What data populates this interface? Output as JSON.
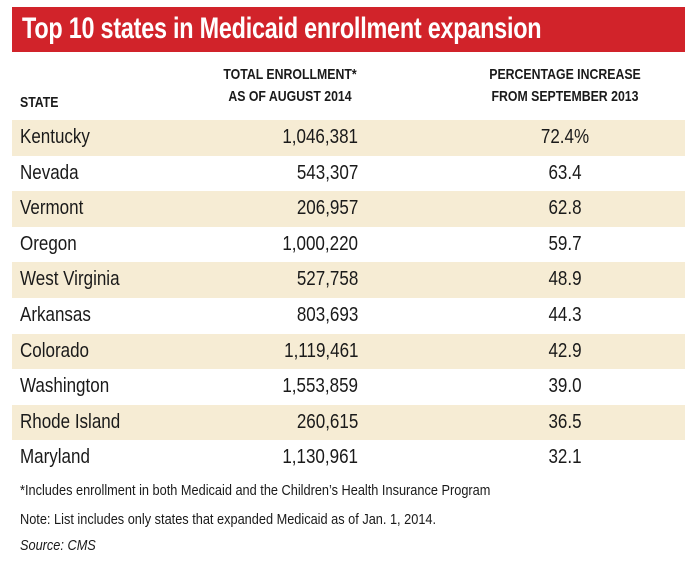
{
  "title": "Top 10 states in Medicaid enrollment expansion",
  "colors": {
    "title_bar": "#d1232a",
    "row_shade": "#f6ecd4"
  },
  "chart_data": {
    "type": "table",
    "title": "Top 10 states in Medicaid enrollment expansion",
    "columns": [
      "STATE",
      "TOTAL ENROLLMENT* AS OF AUGUST 2014",
      "PERCENTAGE INCREASE FROM SEPTEMBER 2013"
    ],
    "header": {
      "state": "STATE",
      "enroll_line1": "TOTAL ENROLLMENT*",
      "enroll_line2": "AS OF AUGUST 2014",
      "pct_line1": "PERCENTAGE INCREASE",
      "pct_line2": "FROM SEPTEMBER 2013"
    },
    "rows": [
      {
        "state": "Kentucky",
        "enrollment": "1,046,381",
        "pct": "72.4%"
      },
      {
        "state": "Nevada",
        "enrollment": "543,307",
        "pct": "63.4"
      },
      {
        "state": "Vermont",
        "enrollment": "206,957",
        "pct": "62.8"
      },
      {
        "state": "Oregon",
        "enrollment": "1,000,220",
        "pct": "59.7"
      },
      {
        "state": "West Virginia",
        "enrollment": "527,758",
        "pct": "48.9"
      },
      {
        "state": "Arkansas",
        "enrollment": "803,693",
        "pct": "44.3"
      },
      {
        "state": "Colorado",
        "enrollment": "1,119,461",
        "pct": "42.9"
      },
      {
        "state": "Washington",
        "enrollment": "1,553,859",
        "pct": "39.0"
      },
      {
        "state": "Rhode Island",
        "enrollment": "260,615",
        "pct": "36.5"
      },
      {
        "state": "Maryland",
        "enrollment": "1,130,961",
        "pct": "32.1"
      }
    ]
  },
  "notes": {
    "footnote": "*Includes enrollment in both Medicaid and the Children’s Health Insurance Program",
    "note": "Note: List includes only states that expanded Medicaid as of Jan. 1, 2014.",
    "source": "Source: CMS"
  }
}
